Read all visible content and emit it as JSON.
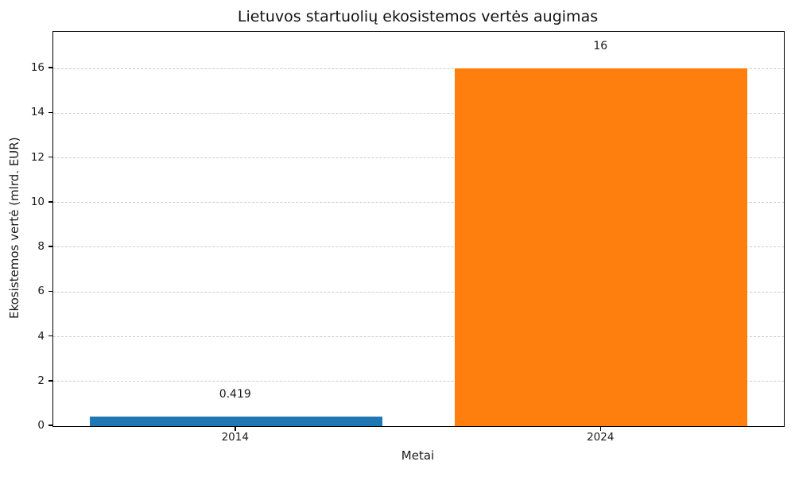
{
  "chart_data": {
    "type": "bar",
    "title": "Lietuvos startuolių ekosistemos vertės augimas",
    "xlabel": "Metai",
    "ylabel": "Ekosistemos vertė (mlrd. EUR)",
    "categories": [
      "2014",
      "2024"
    ],
    "values": [
      0.419,
      16
    ],
    "value_labels": [
      "0.419",
      "16"
    ],
    "bar_colors": [
      "#1f77b4",
      "#ff7f0e"
    ],
    "ylim": [
      0,
      17.64
    ],
    "yticks": [
      0,
      2,
      4,
      6,
      8,
      10,
      12,
      14,
      16
    ],
    "grid": "horizontal-dashed",
    "gridline_color": "#cccccc",
    "bar_width_fraction": 0.8,
    "legend": "none"
  }
}
